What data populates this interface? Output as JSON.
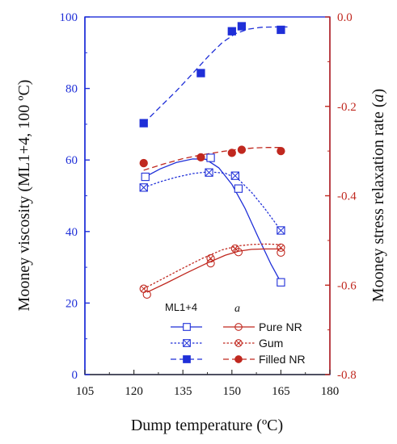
{
  "chart_data": {
    "type": "scatter",
    "title": "",
    "xlabel": "Dump temperature (ºC)",
    "ylabel_left": "Mooney viscosity (ML1+4, 100 ºC)",
    "ylabel_right": "Mooney stress relaxation rate (",
    "ylabel_right_symbol": "a",
    "ylabel_right_suffix": ")",
    "xlim": [
      105,
      180
    ],
    "xticks": [
      "105",
      "120",
      "135",
      "150",
      "165",
      "180"
    ],
    "ylim_left": [
      0,
      100
    ],
    "yticks_left": [
      "0",
      "20",
      "40",
      "60",
      "80",
      "100"
    ],
    "ylim_right": [
      -0.8,
      0.0
    ],
    "yticks_right": [
      "0.0",
      "-0.2",
      "-0.4",
      "-0.6",
      "-0.8"
    ],
    "grid": false,
    "legend_position": "bottom-right",
    "legend_header_ml": "ML1+4",
    "legend_header_a": "a",
    "colors": {
      "ml": "#1f2fd8",
      "a": "#c0281f"
    },
    "series": [
      {
        "name": "Pure NR",
        "metric": "ML1+4",
        "axis": "left",
        "marker": "square-open",
        "line": "solid",
        "x": [
          123.5,
          143.5,
          152,
          165
        ],
        "y": [
          55.3,
          60.6,
          52,
          25.8
        ],
        "fit_x": [
          123.5,
          128,
          133,
          138,
          142,
          146,
          150,
          154,
          158,
          162,
          165
        ],
        "fit_y": [
          55.3,
          57.5,
          59.3,
          60.3,
          60.2,
          57.8,
          53.2,
          46.5,
          38.5,
          30.8,
          25.8
        ]
      },
      {
        "name": "Gum",
        "metric": "ML1+4",
        "axis": "left",
        "marker": "square-crossed",
        "line": "dotted",
        "x": [
          123,
          143,
          151,
          165
        ],
        "y": [
          52.3,
          56.5,
          55.6,
          40.3
        ],
        "fit_x": [
          123,
          128,
          133,
          138,
          143,
          148,
          152,
          156,
          160,
          165
        ],
        "fit_y": [
          52.3,
          53.9,
          55.2,
          56.2,
          56.7,
          56.3,
          54.6,
          51.0,
          46.5,
          40.3
        ]
      },
      {
        "name": "Filled NR",
        "metric": "ML1+4",
        "axis": "left",
        "marker": "square-filled",
        "line": "dashed",
        "x": [
          123,
          140.5,
          150,
          153,
          165
        ],
        "y": [
          70.3,
          84.3,
          96,
          97.4,
          96.4
        ],
        "fit_x": [
          123,
          128,
          133,
          138,
          143,
          147,
          151,
          155,
          159,
          163,
          167
        ],
        "fit_y": [
          70.3,
          74.8,
          79.3,
          84.2,
          89.2,
          92.8,
          95.3,
          96.6,
          97.1,
          97.2,
          97.2
        ]
      },
      {
        "name": "Pure NR",
        "metric": "a",
        "axis": "right",
        "marker": "circle-open",
        "line": "solid",
        "x": [
          124,
          143.5,
          152,
          165
        ],
        "y": [
          -0.621,
          -0.551,
          -0.526,
          -0.527
        ],
        "fit_x": [
          124,
          130,
          136,
          142,
          148,
          152,
          156,
          160,
          165
        ],
        "fit_y": [
          -0.616,
          -0.595,
          -0.573,
          -0.552,
          -0.533,
          -0.524,
          -0.52,
          -0.519,
          -0.519
        ]
      },
      {
        "name": "Gum",
        "metric": "a",
        "axis": "right",
        "marker": "circle-crossed",
        "line": "dotted",
        "x": [
          123,
          143.5,
          151,
          165
        ],
        "y": [
          -0.608,
          -0.54,
          -0.518,
          -0.516
        ],
        "fit_x": [
          123,
          129,
          135,
          141,
          147,
          152,
          156,
          160,
          165
        ],
        "fit_y": [
          -0.608,
          -0.585,
          -0.562,
          -0.54,
          -0.521,
          -0.512,
          -0.509,
          -0.508,
          -0.509
        ]
      },
      {
        "name": "Filled NR",
        "metric": "a",
        "axis": "right",
        "marker": "circle-filled",
        "line": "dashed",
        "x": [
          123,
          140.5,
          150,
          153,
          165
        ],
        "y": [
          -0.327,
          -0.314,
          -0.304,
          -0.297,
          -0.3
        ],
        "fit_x": [
          123,
          129,
          135,
          141,
          147,
          152,
          157,
          161,
          165
        ],
        "fit_y": [
          -0.343,
          -0.329,
          -0.317,
          -0.308,
          -0.301,
          -0.296,
          -0.293,
          -0.292,
          -0.292
        ]
      }
    ]
  }
}
